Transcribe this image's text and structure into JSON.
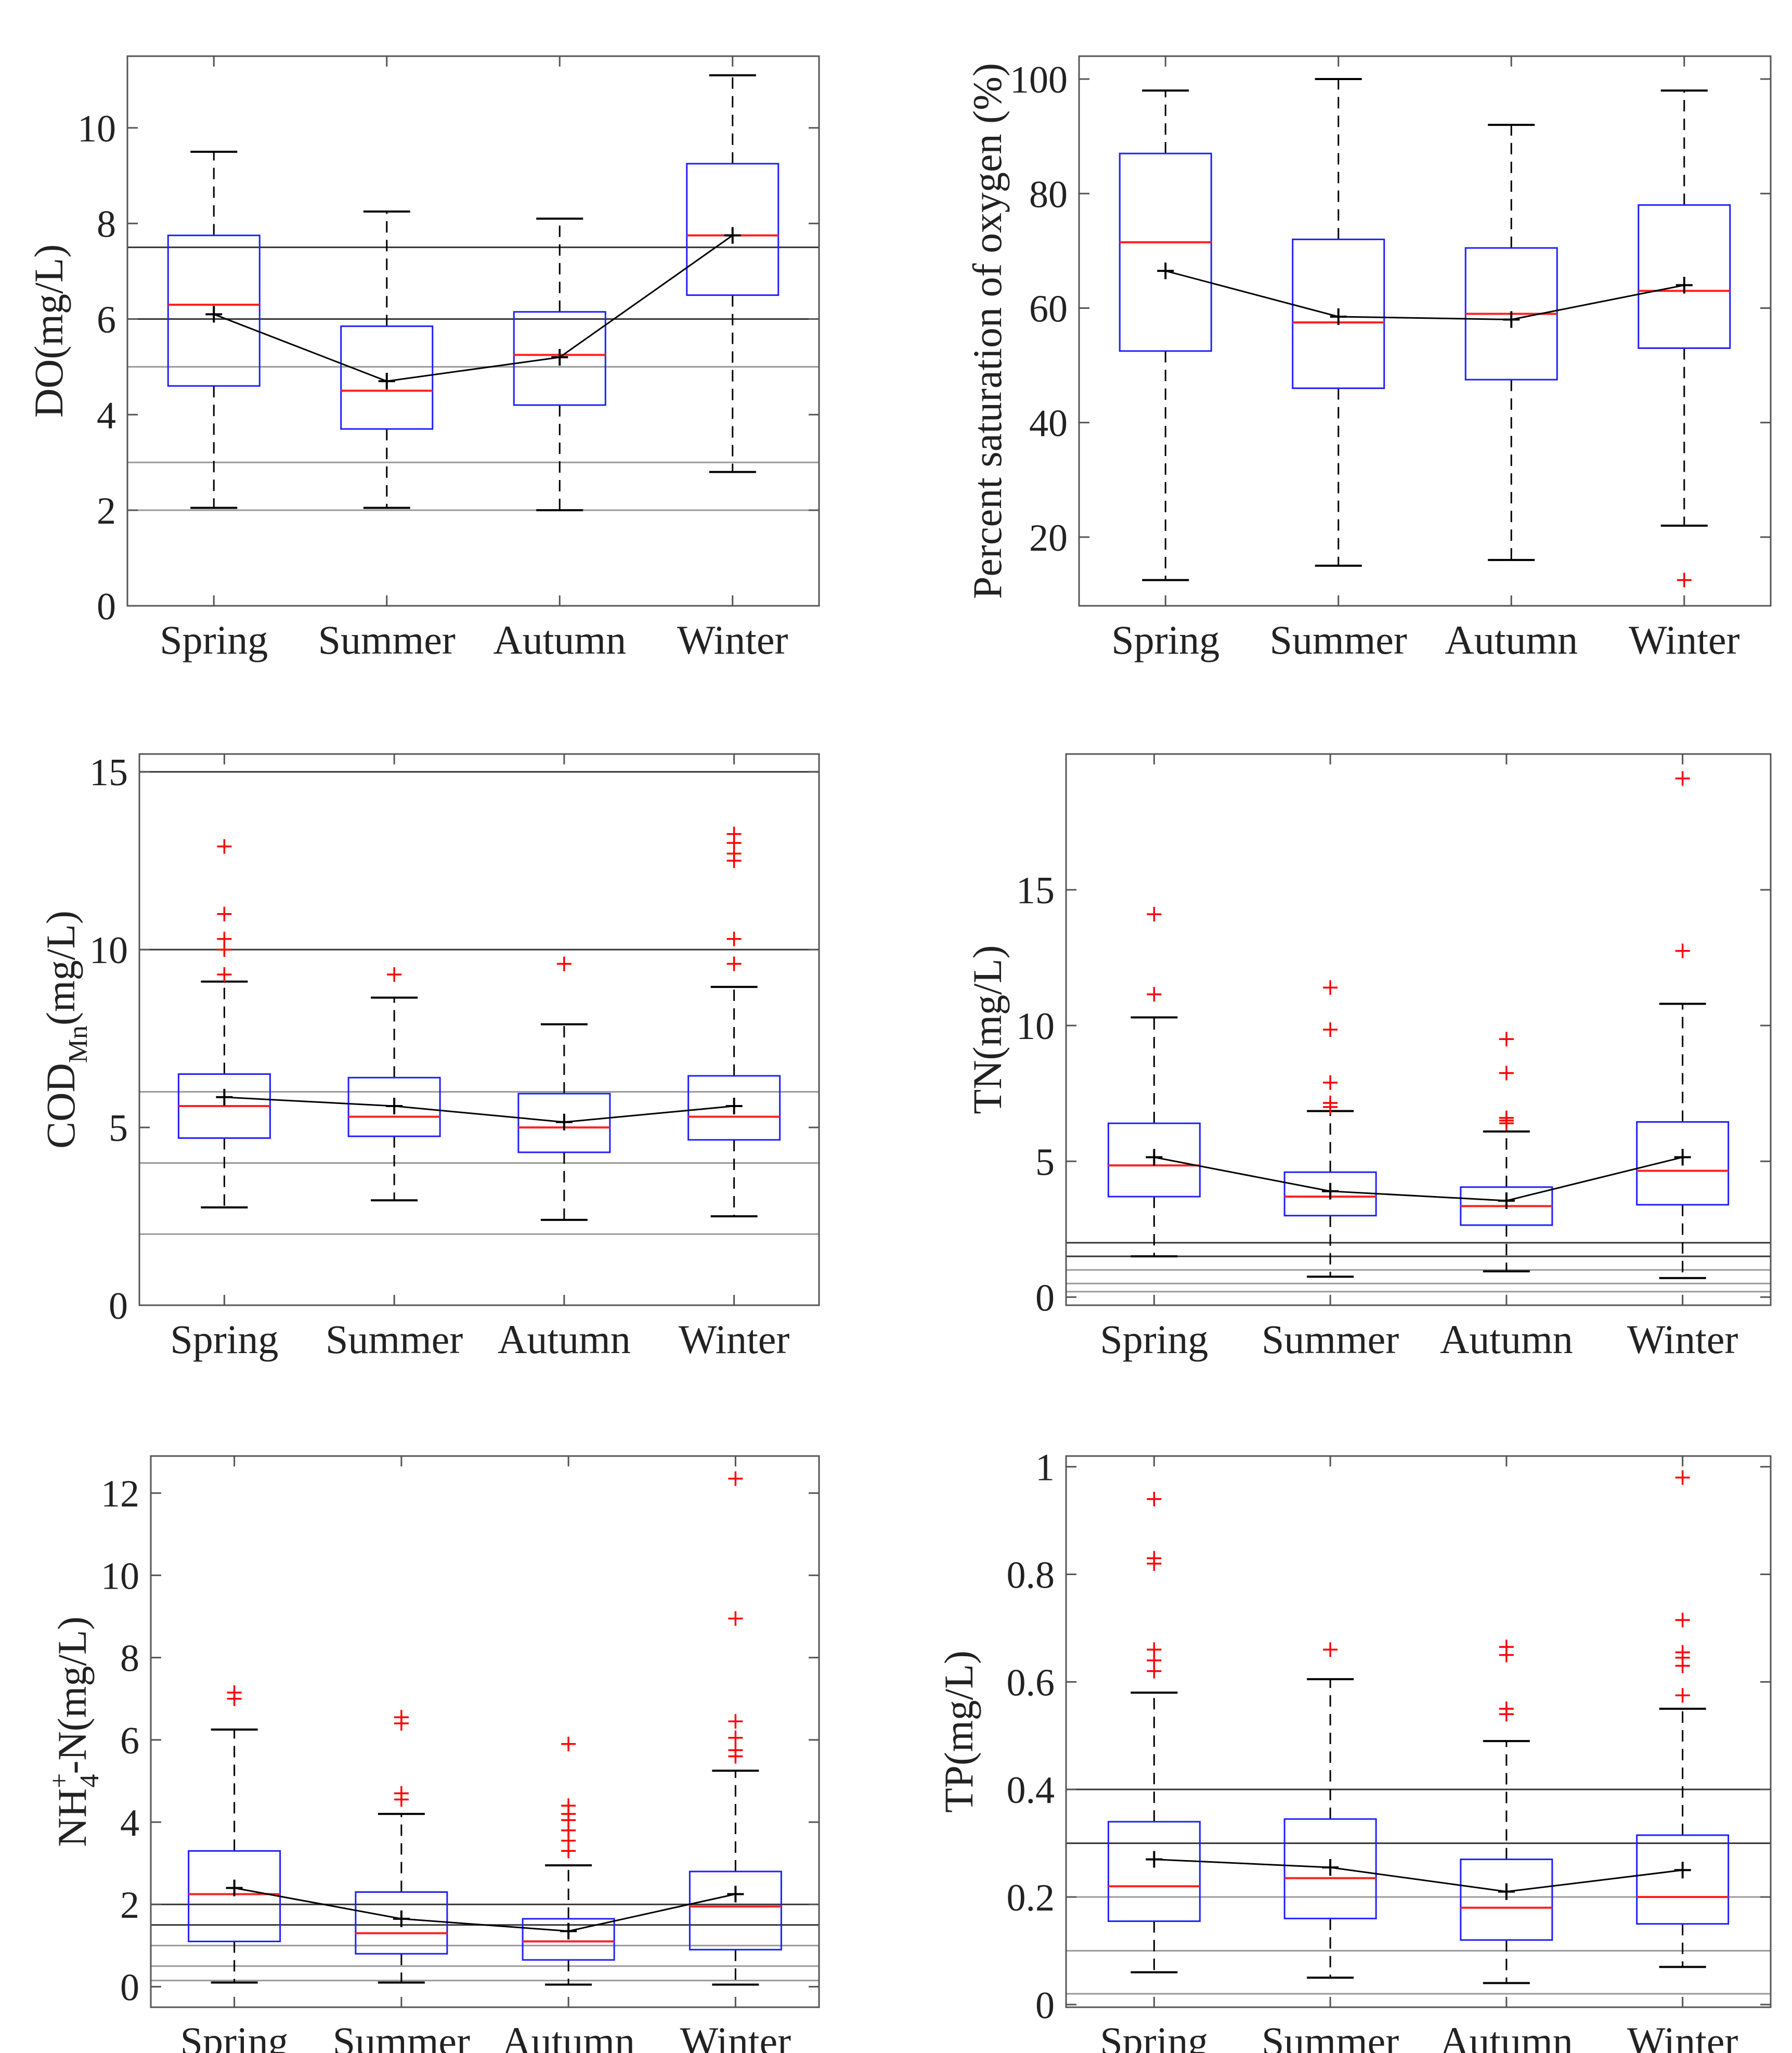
{
  "chart_data": [
    {
      "id": "do",
      "type": "boxplot",
      "ylabel": "DO(mg/L)",
      "categories": [
        "Spring",
        "Summer",
        "Autumn",
        "Winter"
      ],
      "ylim": [
        0,
        11.5
      ],
      "yticks": [
        0,
        2,
        4,
        6,
        8,
        10
      ],
      "tick_labels": [
        "0",
        "2",
        "4",
        "6",
        "8",
        "10"
      ],
      "reference_lines": [
        7.5,
        6,
        5,
        3,
        2
      ],
      "boxes": [
        {
          "wlo": 2.05,
          "q1": 4.6,
          "median": 6.3,
          "q3": 7.75,
          "whi": 9.5,
          "mean": 6.1,
          "outliers": []
        },
        {
          "wlo": 2.05,
          "q1": 3.7,
          "median": 4.5,
          "q3": 5.85,
          "whi": 8.25,
          "mean": 4.7,
          "outliers": []
        },
        {
          "wlo": 2.0,
          "q1": 4.2,
          "median": 5.25,
          "q3": 6.15,
          "whi": 8.1,
          "mean": 5.2,
          "outliers": []
        },
        {
          "wlo": 2.8,
          "q1": 6.5,
          "median": 7.75,
          "q3": 9.25,
          "whi": 11.1,
          "mean": 7.75,
          "outliers": []
        }
      ]
    },
    {
      "id": "sat",
      "type": "boxplot",
      "ylabel": "Percent saturation of oxygen (%)",
      "categories": [
        "Spring",
        "Summer",
        "Autumn",
        "Winter"
      ],
      "ylim": [
        8,
        104
      ],
      "yticks": [
        20,
        40,
        60,
        80,
        100
      ],
      "tick_labels": [
        "20",
        "40",
        "60",
        "80",
        "100"
      ],
      "reference_lines": [],
      "boxes": [
        {
          "wlo": 12.5,
          "q1": 52.5,
          "median": 71.5,
          "q3": 87,
          "whi": 98,
          "mean": 66.5,
          "outliers": []
        },
        {
          "wlo": 15,
          "q1": 46,
          "median": 57.5,
          "q3": 72,
          "whi": 100,
          "mean": 58.5,
          "outliers": []
        },
        {
          "wlo": 16,
          "q1": 47.5,
          "median": 59,
          "q3": 70.5,
          "whi": 92,
          "mean": 58,
          "outliers": []
        },
        {
          "wlo": 22,
          "q1": 53,
          "median": 63,
          "q3": 78,
          "whi": 98,
          "mean": 64,
          "outliers": [
            12.5
          ]
        }
      ]
    },
    {
      "id": "cod",
      "type": "boxplot",
      "ylabel": "COD",
      "ylabel_subscript": "Mn",
      "ylabel_suffix": "(mg/L)",
      "categories": [
        "Spring",
        "Summer",
        "Autumn",
        "Winter"
      ],
      "ylim": [
        0,
        15.5
      ],
      "yticks": [
        0,
        5,
        10,
        15
      ],
      "tick_labels": [
        "0",
        "5",
        "10",
        "15"
      ],
      "reference_lines": [
        15,
        10,
        6,
        4,
        2
      ],
      "boxes": [
        {
          "wlo": 2.75,
          "q1": 4.7,
          "median": 5.6,
          "q3": 6.5,
          "whi": 9.1,
          "mean": 5.85,
          "outliers": [
            9.3,
            10.0,
            10.3,
            11.0,
            12.9
          ]
        },
        {
          "wlo": 2.95,
          "q1": 4.75,
          "median": 5.3,
          "q3": 6.4,
          "whi": 8.65,
          "mean": 5.6,
          "outliers": [
            9.3
          ]
        },
        {
          "wlo": 2.4,
          "q1": 4.3,
          "median": 5.0,
          "q3": 5.95,
          "whi": 7.9,
          "mean": 5.15,
          "outliers": [
            9.6
          ]
        },
        {
          "wlo": 2.5,
          "q1": 4.65,
          "median": 5.3,
          "q3": 6.45,
          "whi": 8.95,
          "mean": 5.6,
          "outliers": [
            9.6,
            10.3,
            12.5,
            12.7,
            13.0,
            13.25
          ]
        }
      ]
    },
    {
      "id": "tn",
      "type": "boxplot",
      "ylabel": "TN(mg/L)",
      "categories": [
        "Spring",
        "Summer",
        "Autumn",
        "Winter"
      ],
      "ylim": [
        -0.3,
        20
      ],
      "yticks": [
        0,
        5,
        10,
        15
      ],
      "tick_labels": [
        "0",
        "5",
        "10",
        "15"
      ],
      "reference_lines": [
        2,
        1.5,
        1,
        0.5,
        0.2
      ],
      "boxes": [
        {
          "wlo": 1.5,
          "q1": 3.7,
          "median": 4.85,
          "q3": 6.4,
          "whi": 10.3,
          "mean": 5.15,
          "outliers": [
            11.15,
            14.1
          ]
        },
        {
          "wlo": 0.75,
          "q1": 3.0,
          "median": 3.7,
          "q3": 4.6,
          "whi": 6.85,
          "mean": 3.9,
          "outliers": [
            7.0,
            7.15,
            7.9,
            9.85,
            11.4
          ]
        },
        {
          "wlo": 0.95,
          "q1": 2.65,
          "median": 3.35,
          "q3": 4.05,
          "whi": 6.1,
          "mean": 3.55,
          "outliers": [
            6.4,
            6.5,
            6.6,
            8.25,
            9.5
          ]
        },
        {
          "wlo": 0.7,
          "q1": 3.4,
          "median": 4.65,
          "q3": 6.45,
          "whi": 10.8,
          "mean": 5.15,
          "outliers": [
            12.75,
            19.1
          ]
        }
      ]
    },
    {
      "id": "nh4",
      "type": "boxplot",
      "ylabel": "NH",
      "ylabel_subscript": "4",
      "ylabel_superscript": "+",
      "ylabel_suffix": "-N(mg/L)",
      "categories": [
        "Spring",
        "Summer",
        "Autumn",
        "Winter"
      ],
      "ylim": [
        -0.5,
        12.9
      ],
      "yticks": [
        0,
        2,
        4,
        6,
        8,
        10,
        12
      ],
      "tick_labels": [
        "0",
        "2",
        "4",
        "6",
        "8",
        "10",
        "12"
      ],
      "reference_lines": [
        2,
        1.5,
        1,
        0.5,
        0.15
      ],
      "boxes": [
        {
          "wlo": 0.1,
          "q1": 1.1,
          "median": 2.25,
          "q3": 3.3,
          "whi": 6.25,
          "mean": 2.4,
          "outliers": [
            7.0,
            7.15
          ]
        },
        {
          "wlo": 0.1,
          "q1": 0.8,
          "median": 1.3,
          "q3": 2.3,
          "whi": 4.2,
          "mean": 1.65,
          "outliers": [
            4.55,
            4.7,
            6.4,
            6.55
          ]
        },
        {
          "wlo": 0.05,
          "q1": 0.65,
          "median": 1.1,
          "q3": 1.65,
          "whi": 2.95,
          "mean": 1.35,
          "outliers": [
            3.3,
            3.55,
            3.8,
            4.05,
            4.2,
            4.4,
            5.9
          ]
        },
        {
          "wlo": 0.05,
          "q1": 0.9,
          "median": 1.95,
          "q3": 2.8,
          "whi": 5.25,
          "mean": 2.25,
          "outliers": [
            5.6,
            5.75,
            6.05,
            6.45,
            8.95,
            12.35
          ]
        }
      ]
    },
    {
      "id": "tp",
      "type": "boxplot",
      "ylabel": "TP(mg/L)",
      "categories": [
        "Spring",
        "Summer",
        "Autumn",
        "Winter"
      ],
      "ylim": [
        -0.005,
        1.02
      ],
      "yticks": [
        0,
        0.2,
        0.4,
        0.6,
        0.8,
        1
      ],
      "tick_labels": [
        "0",
        "0.2",
        "0.4",
        "0.6",
        "0.8",
        "1"
      ],
      "reference_lines": [
        0.4,
        0.3,
        0.2,
        0.1,
        0.02
      ],
      "boxes": [
        {
          "wlo": 0.06,
          "q1": 0.155,
          "median": 0.22,
          "q3": 0.34,
          "whi": 0.58,
          "mean": 0.27,
          "outliers": [
            0.62,
            0.64,
            0.66,
            0.82,
            0.83,
            0.94
          ]
        },
        {
          "wlo": 0.05,
          "q1": 0.16,
          "median": 0.235,
          "q3": 0.345,
          "whi": 0.605,
          "mean": 0.255,
          "outliers": [
            0.66
          ]
        },
        {
          "wlo": 0.04,
          "q1": 0.12,
          "median": 0.18,
          "q3": 0.27,
          "whi": 0.49,
          "mean": 0.21,
          "outliers": [
            0.54,
            0.55,
            0.65,
            0.665
          ]
        },
        {
          "wlo": 0.07,
          "q1": 0.15,
          "median": 0.2,
          "q3": 0.315,
          "whi": 0.55,
          "mean": 0.25,
          "outliers": [
            0.575,
            0.63,
            0.645,
            0.655,
            0.715,
            0.98
          ]
        }
      ]
    }
  ],
  "colors": {
    "axis": "#555555",
    "box": "#1f1fff",
    "median": "#ff2020",
    "outlier": "#ff0000",
    "whisker": "#000000",
    "mean_line": "#000000",
    "ref_dark": "#333333",
    "ref_light": "#999999"
  }
}
